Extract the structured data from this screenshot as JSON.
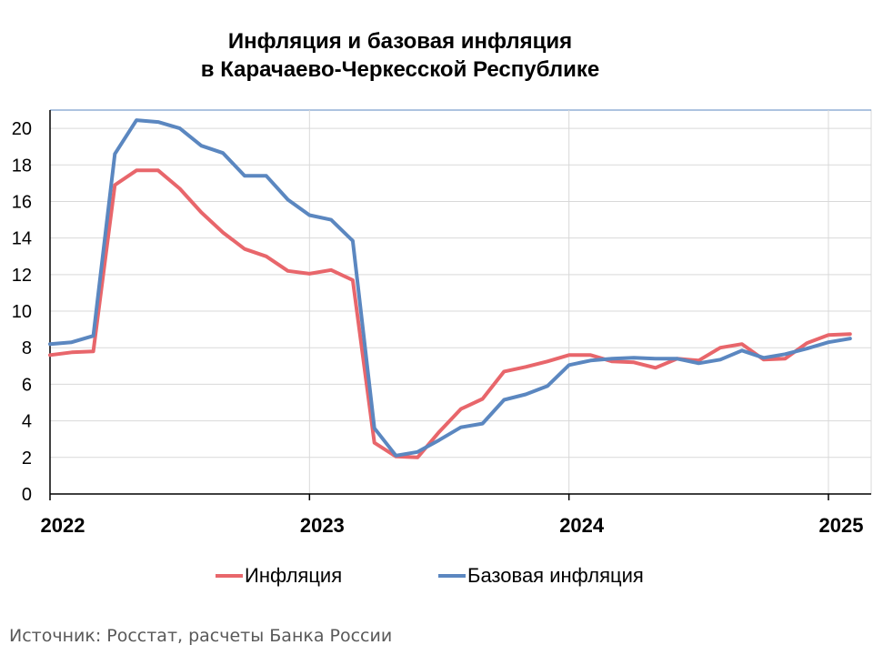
{
  "chart_data": {
    "type": "line",
    "title": "Инфляция и базовая инфляция",
    "subtitle": "в Карачаево-Черкесской Республике",
    "xlabel": "",
    "ylabel": "",
    "ylim": [
      0,
      21
    ],
    "y_ticks": [
      0,
      2,
      4,
      6,
      8,
      10,
      12,
      14,
      16,
      18,
      20
    ],
    "x_ticks": [
      "2022",
      "2023",
      "2024",
      "2025"
    ],
    "grid": true,
    "legend": "bottom",
    "x": [
      "2022-01",
      "2022-02",
      "2022-03",
      "2022-04",
      "2022-05",
      "2022-06",
      "2022-07",
      "2022-08",
      "2022-09",
      "2022-10",
      "2022-11",
      "2022-12",
      "2023-01",
      "2023-02",
      "2023-03",
      "2023-04",
      "2023-05",
      "2023-06",
      "2023-07",
      "2023-08",
      "2023-09",
      "2023-10",
      "2023-11",
      "2023-12",
      "2024-01",
      "2024-02",
      "2024-03",
      "2024-04",
      "2024-05",
      "2024-06",
      "2024-07",
      "2024-08",
      "2024-09",
      "2024-10",
      "2024-11",
      "2024-12",
      "2025-01",
      "2025-02"
    ],
    "series": [
      {
        "name": "Инфляция",
        "color": "#e8666b",
        "values": [
          7.6,
          7.75,
          7.8,
          16.9,
          17.7,
          17.7,
          16.7,
          15.4,
          14.3,
          13.4,
          13.0,
          12.2,
          12.05,
          12.25,
          11.7,
          2.8,
          2.05,
          2.0,
          3.4,
          4.65,
          5.2,
          6.7,
          6.95,
          7.25,
          7.6,
          7.6,
          7.25,
          7.2,
          6.9,
          7.4,
          7.3,
          8.0,
          8.2,
          7.35,
          7.4,
          8.25,
          8.7,
          8.75
        ]
      },
      {
        "name": "Базовая инфляция",
        "color": "#5b87c0",
        "values": [
          8.2,
          8.3,
          8.65,
          18.6,
          20.45,
          20.35,
          20.0,
          19.05,
          18.65,
          17.4,
          17.4,
          16.1,
          15.25,
          15.0,
          13.85,
          3.6,
          2.1,
          2.3,
          2.95,
          3.65,
          3.85,
          5.15,
          5.45,
          5.9,
          7.05,
          7.3,
          7.4,
          7.45,
          7.4,
          7.4,
          7.15,
          7.35,
          7.85,
          7.45,
          7.65,
          7.95,
          8.3,
          8.5
        ]
      }
    ]
  },
  "source_text": "Источник: Росстат, расчеты Банка России"
}
